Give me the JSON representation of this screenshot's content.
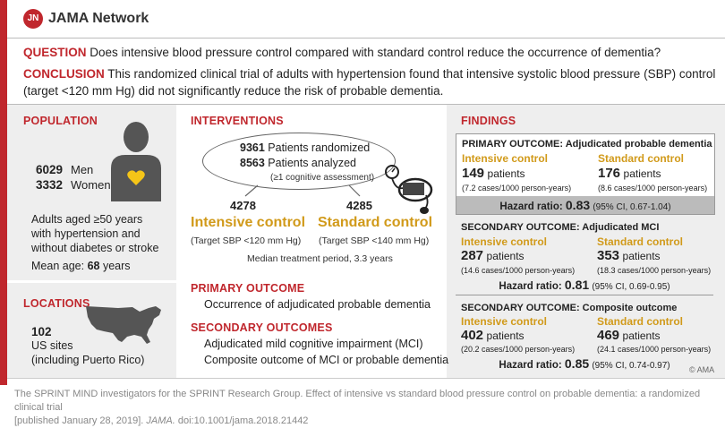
{
  "header": {
    "logo_glyph": "JN",
    "logo_text": "JAMA Network"
  },
  "question": {
    "label": "QUESTION",
    "text": "Does intensive blood pressure control compared with standard control reduce the occurrence of dementia?"
  },
  "conclusion": {
    "label": "CONCLUSION",
    "line1": "This randomized clinical trial of adults with hypertension found that intensive systolic blood pressure (SBP) control",
    "line2": "(target <120 mm Hg) did not significantly reduce the risk of probable dementia."
  },
  "population": {
    "title": "POPULATION",
    "men_count": "6029",
    "men_label": "Men",
    "women_count": "3332",
    "women_label": "Women",
    "desc_line1": "Adults aged ≥50 years",
    "desc_line2": "with hypertension and",
    "desc_line3": "without diabetes or stroke",
    "mean_age_label": "Mean age:",
    "mean_age_value": "68",
    "mean_age_unit": "years"
  },
  "locations": {
    "title": "LOCATIONS",
    "count": "102",
    "line1": "US sites",
    "line2": "(including Puerto Rico)"
  },
  "interventions": {
    "title": "INTERVENTIONS",
    "randomized_count": "9361",
    "randomized_label": "Patients randomized",
    "analyzed_count": "8563",
    "analyzed_label": "Patients analyzed",
    "analyzed_note": "(≥1 cognitive assessment)",
    "intensive_count": "4278",
    "intensive_label": "Intensive control",
    "intensive_target": "(Target SBP <120 mm Hg)",
    "standard_count": "4285",
    "standard_label": "Standard control",
    "standard_target": "(Target SBP <140 mm Hg)",
    "median_period": "Median treatment period, 3.3 years"
  },
  "primary_outcome": {
    "title": "PRIMARY OUTCOME",
    "text": "Occurrence of adjudicated probable dementia"
  },
  "secondary_outcomes": {
    "title": "SECONDARY OUTCOMES",
    "item1": "Adjudicated mild cognitive impairment (MCI)",
    "item2": "Composite outcome of MCI or probable dementia"
  },
  "findings": {
    "title": "FINDINGS",
    "patients_word": "patients",
    "hr_label": "Hazard ratio:",
    "copyright": "© AMA",
    "outcomes": [
      {
        "heading": "PRIMARY OUTCOME: Adjudicated probable dementia",
        "intensive_label": "Intensive control",
        "intensive_count": "149",
        "intensive_rate": "(7.2 cases/1000 person-years)",
        "standard_label": "Standard control",
        "standard_count": "176",
        "standard_rate": "(8.6 cases/1000 person-years)",
        "hr_value": "0.83",
        "hr_ci": "(95% CI, 0.67-1.04)"
      },
      {
        "heading": "SECONDARY OUTCOME: Adjudicated MCI",
        "intensive_label": "Intensive control",
        "intensive_count": "287",
        "intensive_rate": "(14.6 cases/1000 person-years)",
        "standard_label": "Standard control",
        "standard_count": "353",
        "standard_rate": "(18.3 cases/1000 person-years)",
        "hr_value": "0.81",
        "hr_ci": "(95% CI, 0.69-0.95)"
      },
      {
        "heading": "SECONDARY OUTCOME: Composite outcome",
        "intensive_label": "Intensive control",
        "intensive_count": "402",
        "intensive_rate": "(20.2 cases/1000 person-years)",
        "standard_label": "Standard control",
        "standard_count": "469",
        "standard_rate": "(24.1 cases/1000 person-years)",
        "hr_value": "0.85",
        "hr_ci": "(95% CI, 0.74-0.97)"
      }
    ]
  },
  "footer": {
    "line1": "The SPRINT MIND investigators for the SPRINT Research Group. Effect of intensive vs standard blood pressure control on probable dementia: a randomized clinical trial",
    "line2_pre": "[published January 28, 2019].",
    "line2_journal": "JAMA.",
    "line2_doi": "doi:10.1001/jama.2018.21442"
  },
  "colors": {
    "accent_red": "#c0272d",
    "accent_gold": "#d19a1a",
    "panel_gray": "#eeeeee"
  }
}
